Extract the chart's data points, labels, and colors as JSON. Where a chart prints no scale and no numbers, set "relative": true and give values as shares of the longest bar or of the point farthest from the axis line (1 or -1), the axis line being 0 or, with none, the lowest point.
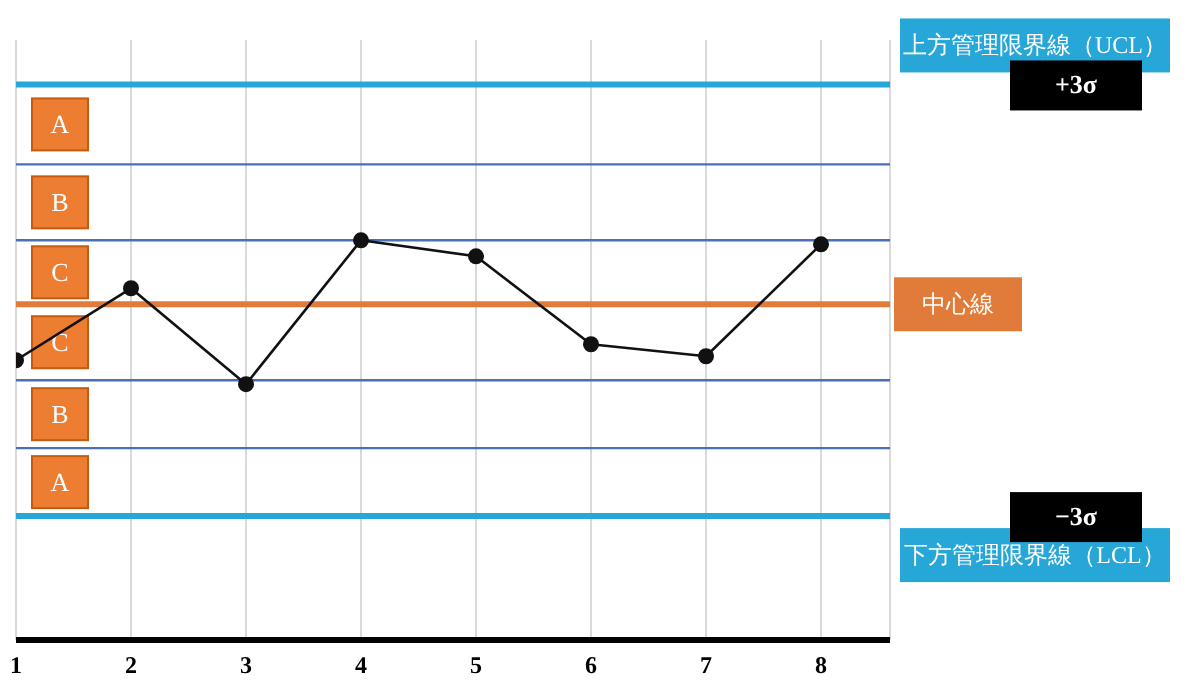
{
  "chart_data": {
    "type": "line",
    "relative": true,
    "categories": [
      "1",
      "2",
      "3",
      "4",
      "5",
      "6",
      "7",
      "8"
    ],
    "series": [
      {
        "color": "#111111",
        "values": [
          0.7,
          0.88,
          0.64,
          1,
          0.96,
          0.74,
          0.71,
          0.99
        ]
      }
    ],
    "marker": "circle",
    "line_style": "solid",
    "grid": "x",
    "tick_labels": "x",
    "legend": false,
    "ref_lines": [
      {
        "axis": "y",
        "value": 1.39,
        "label": "上方管理限界線（UCL）",
        "color": "#27a6d8"
      },
      {
        "axis": "y",
        "value": 1.19,
        "color": "#4a6fb5"
      },
      {
        "axis": "y",
        "value": 1.0,
        "color": "#4a6fb5"
      },
      {
        "axis": "y",
        "value": 0.84,
        "label": "中心線",
        "color": "#e07b39"
      },
      {
        "axis": "y",
        "value": 0.65,
        "color": "#4a6fb5"
      },
      {
        "axis": "y",
        "value": 0.48,
        "color": "#4a6fb5"
      },
      {
        "axis": "y",
        "value": 0.31,
        "label": "下方管理限界線（LCL）",
        "color": "#27a6d8"
      }
    ],
    "annotations": [
      "A",
      "B",
      "C",
      "C",
      "B",
      "A",
      "+3σ",
      "−3σ"
    ]
  }
}
